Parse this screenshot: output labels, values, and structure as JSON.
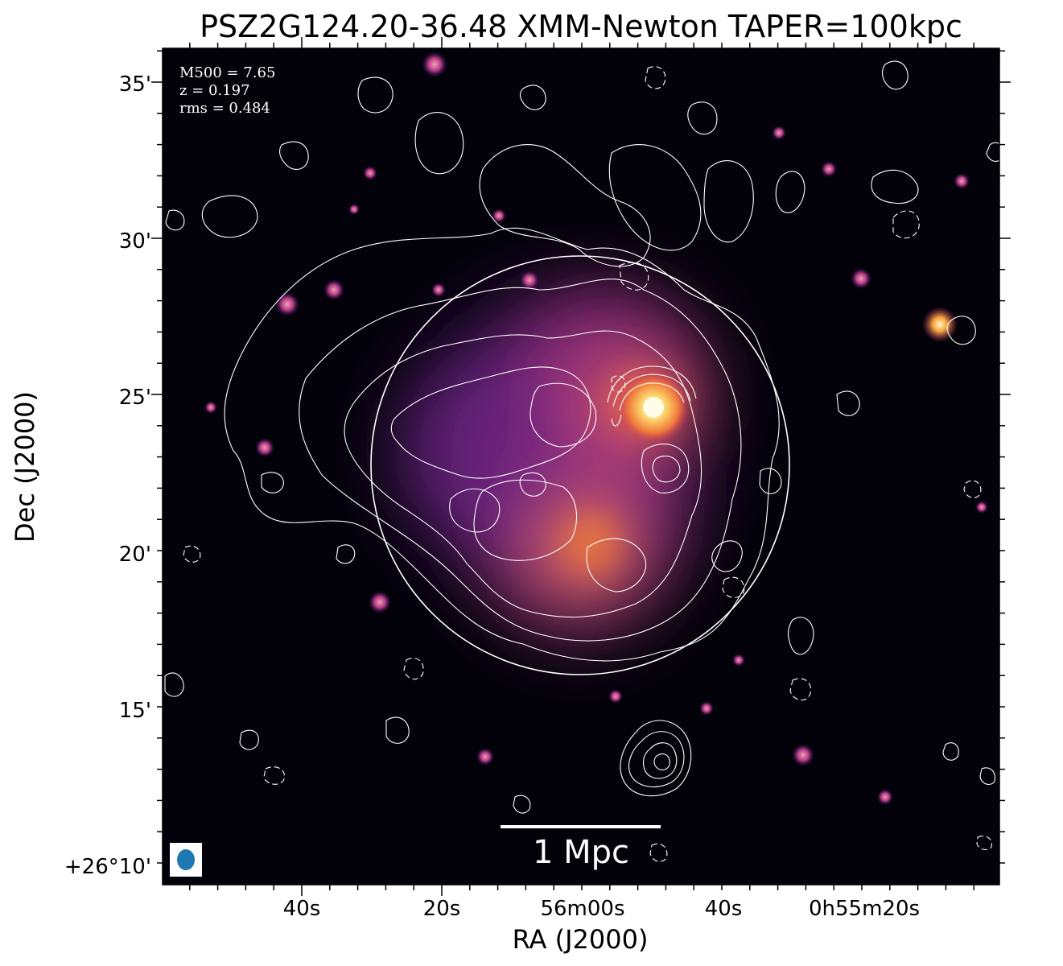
{
  "title": "PSZ2G124.20-36.48 XMM-Newton TAPER=100kpc",
  "info": {
    "mass": "M500 = 7.65",
    "redshift": "z = 0.197",
    "rms": "rms = 0.484"
  },
  "axes": {
    "xlabel": "RA (J2000)",
    "ylabel": "Dec (J2000)",
    "xticks": [
      "40s",
      "20s",
      "56m00s",
      "40s",
      "0h55m20s"
    ],
    "yticks": [
      "35'",
      "30'",
      "25'",
      "20'",
      "15'",
      "+26°10'"
    ]
  },
  "scalebar": {
    "label": "1 Mpc"
  },
  "colors": {
    "background": "#03020a",
    "contours": "#ffffff",
    "beam": "#1f77b4",
    "colormap_low": "#03020a",
    "colormap_mid": "#8a2c7c",
    "colormap_high": "#fbe7a2"
  }
}
